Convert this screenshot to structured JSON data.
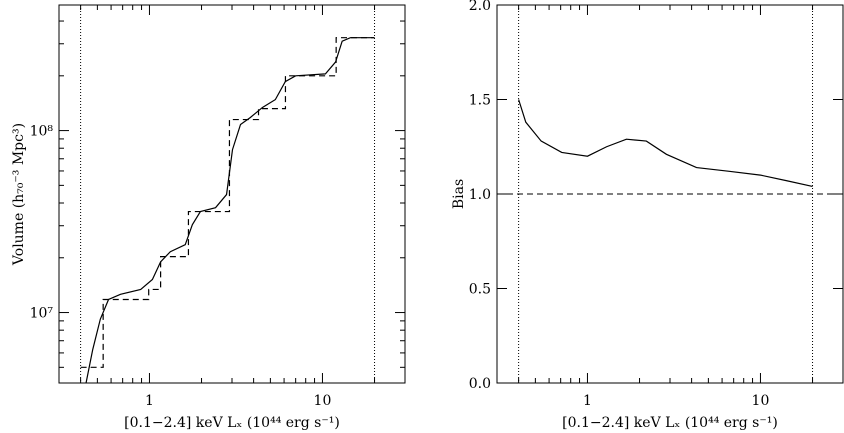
{
  "chart_data": [
    {
      "type": "line",
      "xlabel": "[0.1−2.4] keV Lₓ (10⁴⁴ erg s⁻¹)",
      "ylabel": "Volume (h₇₀⁻³ Mpc³)",
      "xlog": true,
      "ylog": true,
      "xlim": [
        0.3,
        30
      ],
      "ylim": [
        4100000,
        490000000
      ],
      "xticks": [
        1,
        10
      ],
      "xminorticks": [
        0.3,
        0.4,
        0.5,
        0.6,
        0.7,
        0.8,
        0.9,
        2,
        3,
        4,
        5,
        6,
        7,
        8,
        9,
        20,
        30
      ],
      "yticks": [
        {
          "value": 10000000,
          "label": "10⁷"
        },
        {
          "value": 100000000,
          "label": "10⁸"
        }
      ],
      "yminorticks": [
        5000000,
        6000000,
        7000000,
        8000000,
        9000000,
        20000000,
        30000000,
        40000000,
        50000000,
        60000000,
        70000000,
        80000000,
        90000000,
        200000000,
        300000000,
        400000000
      ],
      "vlines": [
        0.4,
        20
      ],
      "series": [
        {
          "style": "dashed",
          "step": "post",
          "color": "#000000",
          "x": [
            0.4,
            0.54,
            0.99,
            1.16,
            1.68,
            2.9,
            4.27,
            6.11,
            12.0,
            20
          ],
          "values": [
            5000000,
            11800000,
            13400000,
            20300000,
            35900000,
            115000000,
            132000000,
            200000000,
            324000000,
            324000000
          ]
        },
        {
          "style": "solid",
          "color": "#000000",
          "x": [
            0.43,
            0.47,
            0.52,
            0.58,
            0.68,
            0.89,
            1.04,
            1.16,
            1.32,
            1.61,
            1.77,
            1.97,
            2.41,
            2.79,
            3.02,
            3.36,
            3.83,
            4.5,
            5.34,
            6.1,
            7.0,
            10.4,
            11.9,
            13.0,
            14.5,
            20
          ],
          "values": [
            4100000,
            6260000,
            9200000,
            11800000,
            12600000,
            13400000,
            15200000,
            19000000,
            21600000,
            23600000,
            30400000,
            35900000,
            37700000,
            44500000,
            78600000,
            108000000,
            118000000,
            134000000,
            148000000,
            186000000,
            200000000,
            205000000,
            238000000,
            310000000,
            324000000,
            324000000
          ]
        }
      ]
    },
    {
      "type": "line",
      "xlabel": "[0.1−2.4] keV Lₓ (10⁴⁴ erg s⁻¹)",
      "ylabel": "Bias",
      "xlog": true,
      "ylog": false,
      "xlim": [
        0.3,
        30
      ],
      "ylim": [
        0,
        2
      ],
      "xticks": [
        1,
        10
      ],
      "xminorticks": [
        0.3,
        0.4,
        0.5,
        0.6,
        0.7,
        0.8,
        0.9,
        2,
        3,
        4,
        5,
        6,
        7,
        8,
        9,
        20,
        30
      ],
      "yticks": [
        {
          "value": 0,
          "label": "0.0"
        },
        0.5,
        {
          "value": 1,
          "label": "1.0"
        },
        1.5,
        {
          "value": 2,
          "label": "2.0"
        }
      ],
      "vlines": [
        0.4,
        20
      ],
      "hlines": [
        1.0
      ],
      "series": [
        {
          "style": "solid",
          "color": "#000000",
          "x": [
            0.4,
            0.44,
            0.54,
            0.71,
            1.0,
            1.29,
            1.68,
            2.19,
            2.86,
            4.27,
            6.6,
            10,
            14.2,
            20
          ],
          "values": [
            1.5,
            1.38,
            1.28,
            1.22,
            1.2,
            1.25,
            1.29,
            1.28,
            1.21,
            1.14,
            1.12,
            1.1,
            1.07,
            1.04
          ]
        }
      ]
    }
  ]
}
